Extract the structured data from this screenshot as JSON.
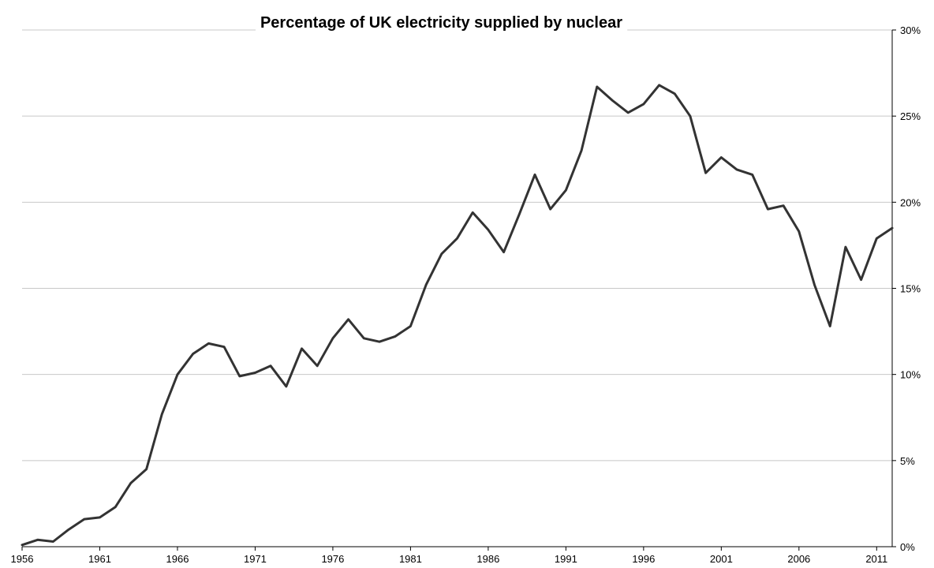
{
  "chart_data": {
    "type": "line",
    "title": "Percentage of UK electricity supplied by nuclear",
    "xlabel": "",
    "ylabel": "",
    "xlim": [
      1956,
      2012
    ],
    "ylim": [
      0,
      30
    ],
    "x_ticks": [
      1956,
      1961,
      1966,
      1971,
      1976,
      1981,
      1986,
      1991,
      1996,
      2001,
      2006,
      2011
    ],
    "x_tick_labels": [
      "1956",
      "1961",
      "1966",
      "1971",
      "1976",
      "1981",
      "1986",
      "1991",
      "1996",
      "2001",
      "2006",
      "2011"
    ],
    "y_ticks": [
      0,
      5,
      10,
      15,
      20,
      25,
      30
    ],
    "y_tick_labels": [
      "0%",
      "5%",
      "10%",
      "15%",
      "20%",
      "25%",
      "30%"
    ],
    "y_axis_side": "right",
    "grid": "horizontal",
    "legend": "none",
    "series_color": "#333333",
    "series": [
      {
        "x": [
          1956,
          1957,
          1958,
          1959,
          1960,
          1961,
          1962,
          1963,
          1964,
          1965,
          1966,
          1967,
          1968,
          1969,
          1970,
          1971,
          1972,
          1973,
          1974,
          1975,
          1976,
          1977,
          1978,
          1979,
          1980,
          1981,
          1982,
          1983,
          1984,
          1985,
          1986,
          1987,
          1988,
          1989,
          1990,
          1991,
          1992,
          1993,
          1994,
          1995,
          1996,
          1997,
          1998,
          1999,
          2000,
          2001,
          2002,
          2003,
          2004,
          2005,
          2006,
          2007,
          2008,
          2009,
          2010,
          2011,
          2012
        ],
        "values": [
          0.1,
          0.4,
          0.3,
          1.0,
          1.6,
          1.7,
          2.3,
          3.7,
          4.5,
          7.7,
          10.0,
          11.2,
          11.8,
          11.6,
          9.9,
          10.1,
          10.5,
          9.3,
          11.5,
          10.5,
          12.1,
          13.2,
          12.1,
          11.9,
          12.2,
          12.8,
          15.2,
          17.0,
          17.9,
          19.4,
          18.4,
          17.1,
          19.3,
          21.6,
          19.6,
          20.7,
          23.0,
          26.7,
          25.9,
          25.2,
          25.7,
          26.8,
          26.3,
          25.0,
          21.7,
          22.6,
          21.9,
          21.6,
          19.6,
          19.8,
          18.3,
          15.2,
          12.8,
          17.4,
          15.5,
          17.9,
          18.5
        ]
      }
    ]
  }
}
